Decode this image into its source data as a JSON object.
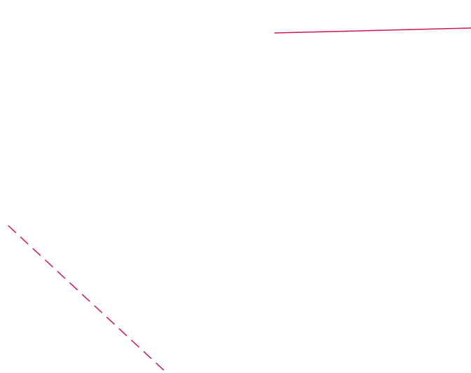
{
  "diagram": {
    "background_color": "#ffffff",
    "stroke_color": "#c8175d",
    "lines": [
      {
        "name": "top-solid-line",
        "style": "solid"
      },
      {
        "name": "left-dashed-line",
        "style": "dashed"
      }
    ]
  }
}
